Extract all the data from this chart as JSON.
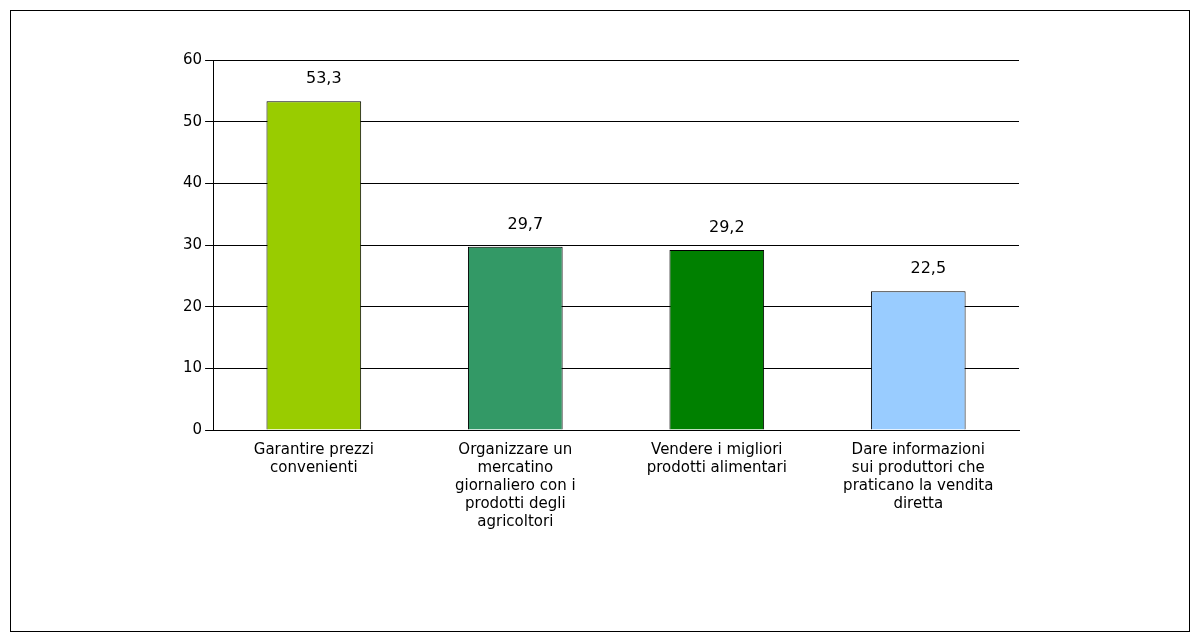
{
  "chart_data": {
    "type": "bar",
    "categories": [
      "Garantire prezzi convenienti",
      "Organizzare un mercatino giornaliero con i prodotti degli agricoltori",
      "Vendere i migliori prodotti alimentari",
      "Dare informazioni sui produttori che praticano la vendita diretta"
    ],
    "values": [
      53.3,
      29.7,
      29.2,
      22.5
    ],
    "colors": [
      "#99cc00",
      "#339966",
      "#008000",
      "#99ccff"
    ],
    "value_labels": [
      "53,3",
      "29,7",
      "29,2",
      "22,5"
    ],
    "ylim": [
      0,
      60
    ],
    "yticks": [
      0,
      10,
      20,
      30,
      40,
      50,
      60
    ],
    "grid": "y",
    "legend": false
  }
}
